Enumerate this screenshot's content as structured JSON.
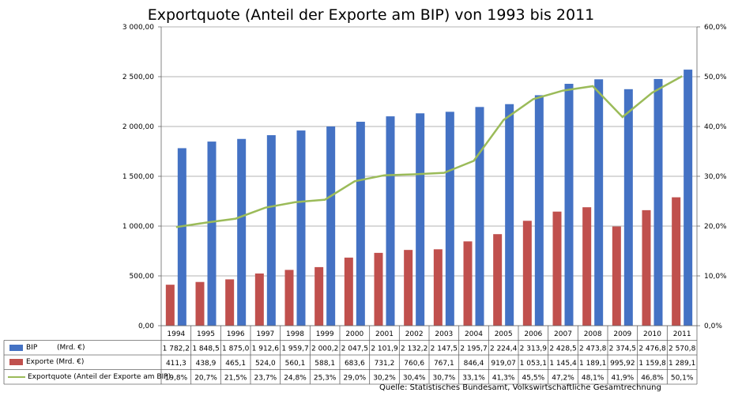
{
  "chart_data": {
    "type": "bar",
    "title": "Exportquote (Anteil der Exporte am BIP) von 1993 bis 2011",
    "categories": [
      "1994",
      "1995",
      "1996",
      "1997",
      "1998",
      "1999",
      "2000",
      "2001",
      "2002",
      "2003",
      "2004",
      "2005",
      "2006",
      "2007",
      "2008",
      "2009",
      "2010",
      "2011"
    ],
    "series": [
      {
        "name": "BIP",
        "unit": "(Mrd. €)",
        "type": "bar",
        "axis": "left",
        "color": "#4472C4",
        "values": [
          1782.2,
          1848.5,
          1875.0,
          1912.6,
          1959.7,
          2000.2,
          2047.5,
          2101.9,
          2132.2,
          2147.5,
          2195.7,
          2224.4,
          2313.9,
          2428.5,
          2473.8,
          2374.5,
          2476.8,
          2570.8
        ],
        "labels": [
          "1 782,2",
          "1 848,5",
          "1 875,0",
          "1 912,6",
          "1 959,7",
          "2 000,2",
          "2 047,5",
          "2 101,9",
          "2 132,2",
          "2 147,5",
          "2 195,7",
          "2 224,4",
          "2 313,9",
          "2 428,5",
          "2 473,8",
          "2 374,5",
          "2 476,8",
          "2 570,8"
        ]
      },
      {
        "name": "Exporte (Mrd. €)",
        "unit": "",
        "type": "bar",
        "axis": "left",
        "color": "#C0504D",
        "values": [
          411.3,
          438.9,
          465.1,
          524.0,
          560.1,
          588.1,
          683.6,
          731.2,
          760.6,
          767.1,
          846.4,
          919.07,
          1053.1,
          1145.4,
          1189.1,
          995.92,
          1159.8,
          1289.1
        ],
        "labels": [
          "411,3",
          "438,9",
          "465,1",
          "524,0",
          "560,1",
          "588,1",
          "683,6",
          "731,2",
          "760,6",
          "767,1",
          "846,4",
          "919,07",
          "1 053,1",
          "1 145,4",
          "1 189,1",
          "995,92",
          "1 159,8",
          "1 289,1"
        ]
      },
      {
        "name": "Exportquote (Anteil der Exporte am BIP)",
        "unit": "",
        "type": "line",
        "axis": "right",
        "color": "#9BBB59",
        "values": [
          19.8,
          20.7,
          21.5,
          23.7,
          24.8,
          25.3,
          29.0,
          30.2,
          30.4,
          30.7,
          33.1,
          41.3,
          45.5,
          47.2,
          48.1,
          41.9,
          46.8,
          50.1
        ],
        "labels": [
          "19,8%",
          "20,7%",
          "21,5%",
          "23,7%",
          "24,8%",
          "25,3%",
          "29,0%",
          "30,2%",
          "30,4%",
          "30,7%",
          "33,1%",
          "41,3%",
          "45,5%",
          "47,2%",
          "48,1%",
          "41,9%",
          "46,8%",
          "50,1%"
        ]
      }
    ],
    "ylim": [
      0,
      3000
    ],
    "yticks": [
      0,
      500,
      1000,
      1500,
      2000,
      2500,
      3000
    ],
    "ytick_labels": [
      "0,00",
      "500,00",
      "1 000,00",
      "1 500,00",
      "2 000,00",
      "2 500,00",
      "3 000,00"
    ],
    "y2lim": [
      0,
      60
    ],
    "y2ticks": [
      0,
      10,
      20,
      30,
      40,
      50,
      60
    ],
    "y2tick_labels": [
      "0,0%",
      "10,0%",
      "20,0%",
      "30,0%",
      "40,0%",
      "50,0%",
      "60,0%"
    ],
    "grid": true,
    "legend": "data-table-left",
    "source": "Quelle:  Statistisches Bundesamt,  Volkswirtschaftliche Gesamtrechnung"
  }
}
